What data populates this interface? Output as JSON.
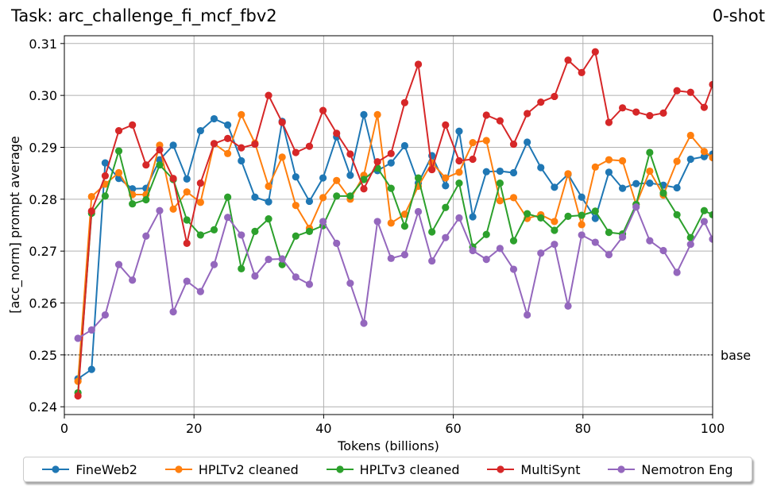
{
  "chart_data": {
    "type": "line",
    "title": "Task: arc_challenge_fi_mcf_fbv2",
    "title_right": "0-shot",
    "xlabel": "Tokens (billions)",
    "ylabel": "[acc_norm] prompt average",
    "xlim": [
      0,
      100
    ],
    "ylim": [
      0.2385,
      0.3115
    ],
    "xticks": [
      0,
      20,
      40,
      60,
      80,
      100
    ],
    "yticks": [
      0.24,
      0.25,
      0.26,
      0.27,
      0.28,
      0.29,
      0.3,
      0.31
    ],
    "ytick_labels": [
      "0.24",
      "0.25",
      "0.26",
      "0.27",
      "0.28",
      "0.29",
      "0.30",
      "0.31"
    ],
    "grid": true,
    "baseline": {
      "value": 0.25,
      "label": "base",
      "style": "dotted"
    },
    "legend_position": "bottom-outside",
    "x": [
      2.1,
      4.2,
      6.3,
      8.4,
      10.5,
      12.6,
      14.7,
      16.8,
      18.9,
      21.0,
      23.1,
      25.2,
      27.3,
      29.4,
      31.5,
      33.6,
      35.7,
      37.8,
      39.9,
      42.0,
      44.1,
      46.2,
      48.3,
      50.4,
      52.5,
      54.6,
      56.7,
      58.8,
      60.9,
      63.0,
      65.1,
      67.2,
      69.3,
      71.4,
      73.5,
      75.6,
      77.7,
      79.8,
      81.9,
      84.0,
      86.1,
      88.2,
      90.3,
      92.4,
      94.5,
      96.6,
      98.7,
      100.0
    ],
    "series": [
      {
        "name": "FineWeb2",
        "color": "#1f77b4",
        "values": [
          0.2454,
          0.2472,
          0.287,
          0.284,
          0.282,
          0.2821,
          0.2876,
          0.2904,
          0.2839,
          0.2932,
          0.2955,
          0.2943,
          0.2874,
          0.2804,
          0.2795,
          0.295,
          0.2843,
          0.2796,
          0.2841,
          0.292,
          0.2846,
          0.2963,
          0.2855,
          0.287,
          0.2903,
          0.2831,
          0.2884,
          0.2826,
          0.2931,
          0.2766,
          0.2853,
          0.2854,
          0.2851,
          0.291,
          0.2861,
          0.2823,
          0.2848,
          0.2804,
          0.2763,
          0.2852,
          0.2821,
          0.283,
          0.2831,
          0.2827,
          0.2822,
          0.2877,
          0.2882,
          0.2887
        ]
      },
      {
        "name": "HPLTv2 cleaned",
        "color": "#ff7f0e",
        "values": [
          0.2449,
          0.2805,
          0.2829,
          0.2851,
          0.2809,
          0.2809,
          0.2904,
          0.2781,
          0.2814,
          0.2794,
          0.2907,
          0.2888,
          0.2963,
          0.2908,
          0.2825,
          0.2881,
          0.2788,
          0.2744,
          0.2803,
          0.2836,
          0.28,
          0.2846,
          0.2963,
          0.2754,
          0.2771,
          0.2825,
          0.287,
          0.2841,
          0.2852,
          0.2909,
          0.2913,
          0.2797,
          0.2803,
          0.2763,
          0.277,
          0.2757,
          0.2849,
          0.2751,
          0.2862,
          0.2876,
          0.2874,
          0.279,
          0.2854,
          0.2808,
          0.2873,
          0.2923,
          0.2892,
          0.288
        ]
      },
      {
        "name": "HPLTv3 cleaned",
        "color": "#2ca02c",
        "values": [
          0.2427,
          0.2773,
          0.2806,
          0.2893,
          0.2791,
          0.2799,
          0.2866,
          0.2838,
          0.276,
          0.2731,
          0.2741,
          0.2804,
          0.2666,
          0.2738,
          0.2762,
          0.2674,
          0.2729,
          0.2738,
          0.2749,
          0.2806,
          0.2806,
          0.2838,
          0.286,
          0.2821,
          0.2748,
          0.2841,
          0.2737,
          0.2784,
          0.2831,
          0.2708,
          0.2732,
          0.2831,
          0.272,
          0.2772,
          0.2764,
          0.274,
          0.2767,
          0.2769,
          0.2777,
          0.2736,
          0.2733,
          0.279,
          0.289,
          0.2812,
          0.277,
          0.2726,
          0.2778,
          0.277
        ]
      },
      {
        "name": "MultiSynt",
        "color": "#d62728",
        "values": [
          0.2421,
          0.2777,
          0.2845,
          0.2932,
          0.2943,
          0.2866,
          0.2895,
          0.284,
          0.2715,
          0.2831,
          0.2907,
          0.2917,
          0.2899,
          0.2906,
          0.3,
          0.2948,
          0.289,
          0.2902,
          0.2971,
          0.2927,
          0.2887,
          0.282,
          0.2872,
          0.2888,
          0.2986,
          0.306,
          0.2857,
          0.2943,
          0.2874,
          0.2877,
          0.2962,
          0.2951,
          0.2906,
          0.2965,
          0.2987,
          0.2998,
          0.3068,
          0.3044,
          0.3084,
          0.2948,
          0.2976,
          0.2968,
          0.2961,
          0.2966,
          0.3009,
          0.3006,
          0.2977,
          0.3021
        ]
      },
      {
        "name": "Nemotron Eng",
        "color": "#9467bd",
        "values": [
          0.2532,
          0.2548,
          0.2577,
          0.2674,
          0.2644,
          0.2729,
          0.2778,
          0.2583,
          0.2642,
          0.2622,
          0.2674,
          0.2765,
          0.2731,
          0.2652,
          0.2684,
          0.2685,
          0.265,
          0.2636,
          0.2757,
          0.2715,
          0.2638,
          0.2561,
          0.2757,
          0.2686,
          0.2693,
          0.2776,
          0.2681,
          0.2726,
          0.2764,
          0.2701,
          0.2684,
          0.2705,
          0.2665,
          0.2577,
          0.2696,
          0.2713,
          0.2594,
          0.2731,
          0.2717,
          0.2693,
          0.2727,
          0.2785,
          0.272,
          0.2701,
          0.2659,
          0.2713,
          0.2757,
          0.2723
        ]
      }
    ]
  }
}
